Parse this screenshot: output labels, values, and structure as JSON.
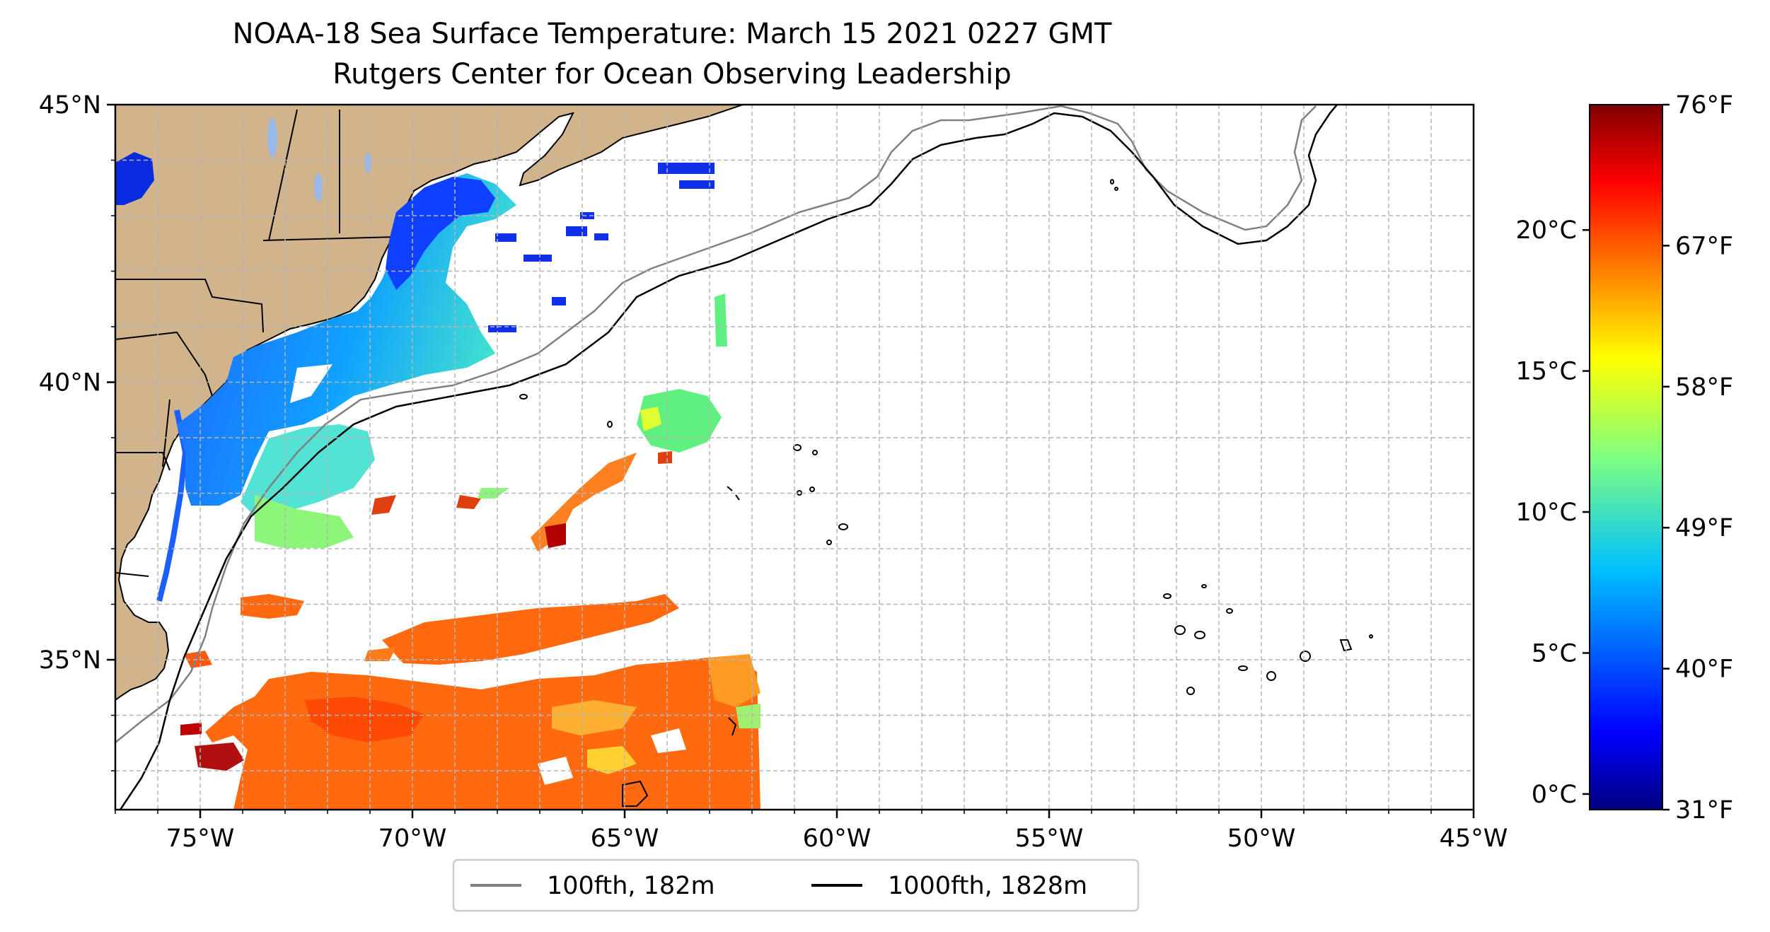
{
  "title": {
    "line1": "NOAA-18 Sea Surface Temperature: March 15 2021 0227 GMT",
    "line2": "Rutgers Center for Ocean Observing Leadership"
  },
  "map": {
    "lon_range": [
      -77,
      -45
    ],
    "lat_range": [
      32.3,
      45
    ],
    "lat_ticks": [
      {
        "value": 45,
        "label": "45°N"
      },
      {
        "value": 40,
        "label": "40°N"
      },
      {
        "value": 35,
        "label": "35°N"
      }
    ],
    "lon_ticks": [
      {
        "value": -75,
        "label": "75°W"
      },
      {
        "value": -70,
        "label": "70°W"
      },
      {
        "value": -65,
        "label": "65°W"
      },
      {
        "value": -60,
        "label": "60°W"
      },
      {
        "value": -55,
        "label": "55°W"
      },
      {
        "value": -50,
        "label": "50°W"
      },
      {
        "value": -45,
        "label": "45°W"
      }
    ],
    "land_color": "#d2b48c",
    "grid": true
  },
  "legend": {
    "items": [
      {
        "label": "100fth, 182m",
        "color": "#808080"
      },
      {
        "label": "1000fth, 1828m",
        "color": "#000000"
      }
    ]
  },
  "colorbar": {
    "colormap": "jet",
    "celsius_ticks": [
      {
        "value": 20,
        "label": "20°C"
      },
      {
        "value": 15,
        "label": "15°C"
      },
      {
        "value": 10,
        "label": "10°C"
      },
      {
        "value": 5,
        "label": "5°C"
      },
      {
        "value": 0,
        "label": "0°C"
      }
    ],
    "fahrenheit_ticks": [
      {
        "value": 76,
        "label": "76°F"
      },
      {
        "value": 67,
        "label": "67°F"
      },
      {
        "value": 58,
        "label": "58°F"
      },
      {
        "value": 49,
        "label": "49°F"
      },
      {
        "value": 40,
        "label": "40°F"
      },
      {
        "value": 31,
        "label": "31°F"
      }
    ]
  }
}
